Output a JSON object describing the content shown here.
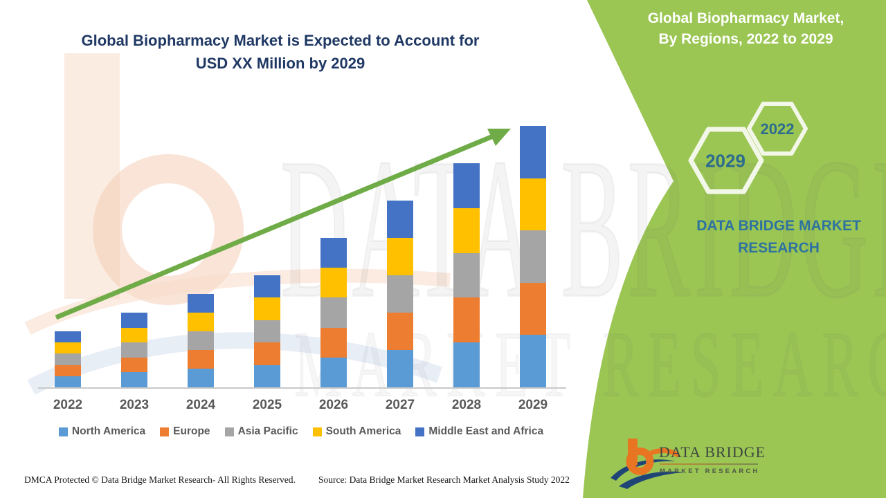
{
  "header": {
    "line1": "Global Biopharmacy Market is Expected to Account for",
    "line2": "USD XX Million by 2029"
  },
  "panel": {
    "title_line1": "Global Biopharmacy Market,",
    "title_line2": "By Regions, 2022 to 2029",
    "hex_2022": "2022",
    "hex_2029": "2029",
    "brand_line1": "DATA BRIDGE MARKET",
    "brand_line2": "RESEARCH"
  },
  "logo": {
    "title": "DATA BRIDGE",
    "subtitle": "MARKET RESEARCH"
  },
  "watermark": {
    "line1": "DATA BRIDGE",
    "line2": "MARKET RESEARCH"
  },
  "footer": {
    "dmca": "DMCA Protected © Data Bridge Market Research- All Rights Reserved.",
    "source": "Source: Data Bridge Market Research Market Analysis Study 2022"
  },
  "colors": {
    "panel_green": "#9BC653",
    "hexagon_stroke": "#F2F7E8",
    "arrow_green": "#6FAC47",
    "title_navy": "#1F3864",
    "brand_blue": "#2E73A0",
    "hex_number_blue": "#2C6B8E",
    "axis_gray": "#C9C9C9",
    "label_gray": "#595959",
    "logo_orange": "#E87522",
    "logo_navy": "#1F4577"
  },
  "chart_data": {
    "type": "bar",
    "stacked": true,
    "title": "Global Biopharmacy Market is Expected to Account for USD XX Million by 2029",
    "xlabel": "",
    "ylabel": "",
    "value_axis": "not shown (USD XX Million; values estimated in relative units from bar heights)",
    "grid": false,
    "legend_position": "bottom",
    "trend_arrow": true,
    "categories": [
      "2022",
      "2023",
      "2024",
      "2025",
      "2026",
      "2027",
      "2028",
      "2029"
    ],
    "series": [
      {
        "name": "North America",
        "color": "#5B9BD5",
        "values": [
          6,
          8,
          10,
          12,
          16,
          20,
          24,
          28
        ]
      },
      {
        "name": "Europe",
        "color": "#ED7D31",
        "values": [
          6,
          8,
          10,
          12,
          16,
          20,
          24,
          28
        ]
      },
      {
        "name": "Asia Pacific",
        "color": "#A5A5A5",
        "values": [
          6,
          8,
          10,
          12,
          16,
          20,
          24,
          28
        ]
      },
      {
        "name": "South America",
        "color": "#FFC000",
        "values": [
          6,
          8,
          10,
          12,
          16,
          20,
          24,
          28
        ]
      },
      {
        "name": "Middle East and Africa",
        "color": "#4472C4",
        "values": [
          6,
          8,
          10,
          12,
          16,
          20,
          24,
          28
        ]
      }
    ],
    "totals": [
      30,
      40,
      50,
      60,
      80,
      100,
      120,
      140
    ]
  }
}
